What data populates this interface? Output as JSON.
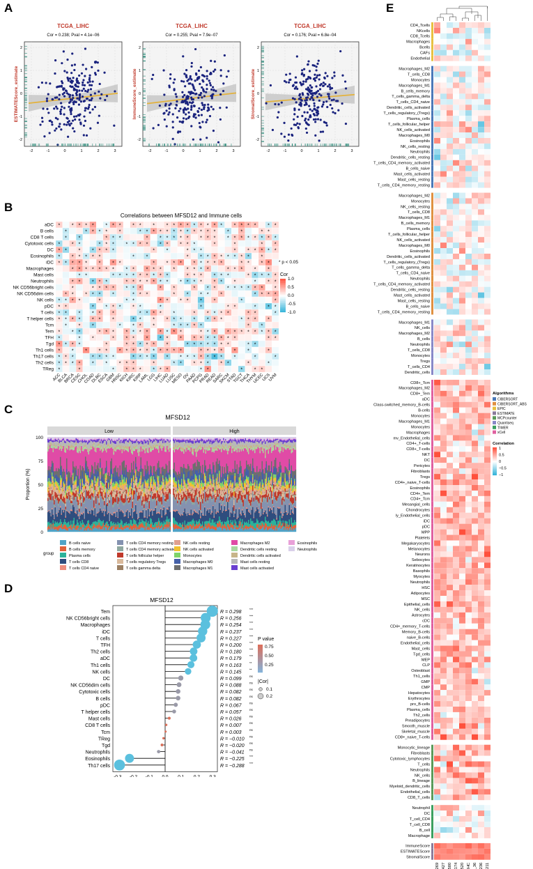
{
  "panels": {
    "A": "A",
    "B": "B",
    "C": "C",
    "D": "D",
    "E": "E"
  },
  "panelA": {
    "xlabel": "MFSD12 Expression (z−score)",
    "xticks": [
      "-2",
      "-1",
      "0",
      "1",
      "2",
      "3"
    ],
    "yticks": [
      "2",
      "1",
      "0",
      "-1",
      "-2"
    ],
    "plots": [
      {
        "title": "TCGA_LIHC",
        "stat": "Cor = 0.238; Pval = 4.1e−06",
        "ylabel": "ESTIMATEScore_estimate",
        "slope": 0.238
      },
      {
        "title": "TCGA_LIHC",
        "stat": "Cor = 0.255; Pval = 7.9e−07",
        "ylabel": "ImmuneScore_estimate",
        "slope": 0.255
      },
      {
        "title": "TCGA_LIHC",
        "stat": "Cor = 0.176; Pval = 6.8e−04",
        "ylabel": "StromalScore_estimate",
        "slope": 0.176
      }
    ],
    "colors": {
      "point": "#1a237e",
      "line": "#e3b23c",
      "band": "#bdbdbd",
      "rug": "#2e8b7a",
      "title": "#c0392b"
    }
  },
  "panelB": {
    "title": "Correlations between MFSD12 and Immune cells",
    "rows": [
      "aDC",
      "B cells",
      "CD8 T cells",
      "Cytotoxic cells",
      "DC",
      "Eosinophils",
      "iDC",
      "Macrophages",
      "Mast cells",
      "Neutrophils",
      "NK CD56bright cells",
      "NK CD56dim cells",
      "NK cells",
      "pDC",
      "T cells",
      "T helper cells",
      "Tcm",
      "Tem",
      "TFH",
      "Tgd",
      "Th1 cells",
      "Th17 cells",
      "Th2 cells",
      "TReg"
    ],
    "cols": [
      "ACC",
      "BLCA",
      "BRCA",
      "CESC",
      "CHOL",
      "COAD",
      "DLBC",
      "ESCA",
      "GBM",
      "HNSC",
      "KICH",
      "KIRC",
      "KIRP",
      "LAML",
      "LGG",
      "LIHC",
      "LUAD",
      "LUSC",
      "MESO",
      "OV",
      "PAAD",
      "PCPG",
      "PRAD",
      "READ",
      "SARC",
      "SKCM",
      "STAD",
      "TGCT",
      "THCA",
      "THYM",
      "UCEC",
      "UCS",
      "UVM"
    ],
    "note": "* p < 0.05",
    "legend_title": "Cor",
    "legend_ticks": [
      "1.0",
      "0.5",
      "0.0",
      "-0.5",
      "-1.0"
    ]
  },
  "panelC": {
    "title": "MFSD12",
    "facets": [
      "Low",
      "High"
    ],
    "ylabel": "Proportion (%)",
    "yticks": [
      "100",
      "75",
      "50",
      "25",
      "0"
    ],
    "legend_group_label": "group",
    "legend": [
      {
        "name": "B cells naive",
        "color": "#4fa3c7"
      },
      {
        "name": "B cells memory",
        "color": "#e0623b"
      },
      {
        "name": "Plasma cells",
        "color": "#2bb39b"
      },
      {
        "name": "T cells CD8",
        "color": "#2f4d7e"
      },
      {
        "name": "T cells CD4 naive",
        "color": "#ee8e7e"
      },
      {
        "name": "T cells CD4 memory resting",
        "color": "#8492b0"
      },
      {
        "name": "T cells CD4 memory activated",
        "color": "#8fa8a0"
      },
      {
        "name": "T cells follicular helper",
        "color": "#c0392b"
      },
      {
        "name": "T cells regulatory Tregs",
        "color": "#d9b99b"
      },
      {
        "name": "T cells gamma delta",
        "color": "#9b7f63"
      },
      {
        "name": "NK cells resting",
        "color": "#e0a090"
      },
      {
        "name": "NK cells activated",
        "color": "#f2c230"
      },
      {
        "name": "Monocytes",
        "color": "#7ed36a"
      },
      {
        "name": "Macrophages M0",
        "color": "#4560a8"
      },
      {
        "name": "Macrophages M1",
        "color": "#6e6e6e"
      },
      {
        "name": "Macrophages M2",
        "color": "#e04ba6"
      },
      {
        "name": "Dendritic cells resting",
        "color": "#a8d8a0"
      },
      {
        "name": "Dendritic cells activated",
        "color": "#c7b58a"
      },
      {
        "name": "Mast cells resting",
        "color": "#b8b8b8"
      },
      {
        "name": "Mast cells activated",
        "color": "#6a3fd0"
      },
      {
        "name": "Eosinophils",
        "color": "#e8a0d8"
      },
      {
        "name": "Neutrophils",
        "color": "#d9d0ea"
      }
    ]
  },
  "panelD": {
    "title": "MFSD12",
    "xlabel": "Correlation",
    "xticks": [
      "-0.3",
      "-0.2",
      "-0.1",
      "0.0",
      "0.1",
      "0.2",
      "0.3"
    ],
    "legend_p_title": "P value",
    "legend_p_ticks": [
      "0.75",
      "0.50",
      "0.25"
    ],
    "legend_cor_title": "|Cor|",
    "legend_cor_ticks": [
      "0.1",
      "0.2"
    ],
    "rows": [
      {
        "name": "Tem",
        "r": 0.298,
        "label": "R = 0.298",
        "sig": "***",
        "p": 0.0
      },
      {
        "name": "NK CD56bright cells",
        "r": 0.256,
        "label": "R = 0.256",
        "sig": "***",
        "p": 0.0
      },
      {
        "name": "Macrophages",
        "r": 0.254,
        "label": "R = 0.254",
        "sig": "***",
        "p": 0.0
      },
      {
        "name": "iDC",
        "r": 0.237,
        "label": "R = 0.237",
        "sig": "***",
        "p": 0.0
      },
      {
        "name": "T cells",
        "r": 0.227,
        "label": "R = 0.227",
        "sig": "***",
        "p": 0.0
      },
      {
        "name": "TFH",
        "r": 0.2,
        "label": "R = 0.200",
        "sig": "***",
        "p": 0.0
      },
      {
        "name": "Th2 cells",
        "r": 0.18,
        "label": "R = 0.180",
        "sig": "***",
        "p": 0.0
      },
      {
        "name": "aDC",
        "r": 0.179,
        "label": "R = 0.179",
        "sig": "***",
        "p": 0.0
      },
      {
        "name": "Th1 cells",
        "r": 0.163,
        "label": "R = 0.163",
        "sig": "**",
        "p": 0.0
      },
      {
        "name": "NK cells",
        "r": 0.145,
        "label": "R = 0.145",
        "sig": "**",
        "p": 0.0
      },
      {
        "name": "DC",
        "r": 0.099,
        "label": "R = 0.099",
        "sig": "ns",
        "p": 0.06
      },
      {
        "name": "NK CD56dim cells",
        "r": 0.088,
        "label": "R = 0.088",
        "sig": "ns",
        "p": 0.09
      },
      {
        "name": "Cytotoxic cells",
        "r": 0.082,
        "label": "R = 0.082",
        "sig": "ns",
        "p": 0.11
      },
      {
        "name": "B cells",
        "r": 0.082,
        "label": "R = 0.082",
        "sig": "ns",
        "p": 0.11
      },
      {
        "name": "pDC",
        "r": 0.067,
        "label": "R = 0.067",
        "sig": "ns",
        "p": 0.2
      },
      {
        "name": "T helper cells",
        "r": 0.057,
        "label": "R = 0.057",
        "sig": "ns",
        "p": 0.27
      },
      {
        "name": "Mast cells",
        "r": 0.026,
        "label": "R = 0.026",
        "sig": "ns",
        "p": 0.62
      },
      {
        "name": "CD8 T cells",
        "r": 0.007,
        "label": "R = 0.007",
        "sig": "ns",
        "p": 0.89
      },
      {
        "name": "Tcm",
        "r": 0.003,
        "label": "R = 0.003",
        "sig": "ns",
        "p": 0.95
      },
      {
        "name": "TReg",
        "r": -0.01,
        "label": "R = −0.010",
        "sig": "ns",
        "p": 0.85
      },
      {
        "name": "Tgd",
        "r": -0.02,
        "label": "R = −0.020",
        "sig": "ns",
        "p": 0.7
      },
      {
        "name": "Neutrophils",
        "r": -0.041,
        "label": "R = −0.041",
        "sig": "ns",
        "p": 0.43
      },
      {
        "name": "Eosinophils",
        "r": -0.225,
        "label": "R = −0.225",
        "sig": "***",
        "p": 0.0
      },
      {
        "name": "Th17 cells",
        "r": -0.288,
        "label": "R = −0.288",
        "sig": "***",
        "p": 0.0
      }
    ]
  },
  "panelE": {
    "blocks": [
      {
        "algo": "#e8c040",
        "rows": [
          "CD4_Tcells",
          "NKcells",
          "CD8_Tcells",
          "Macrophages",
          "Bcells",
          "CAFs",
          "Endothelial"
        ]
      },
      {
        "algo": "#4a78b8",
        "rows": [
          "Macrophages_M2",
          "T_cells_CD8",
          "Monocytes",
          "Macrophages_M1",
          "B_cells_memory",
          "T_cells_gamma_delta",
          "T_cells_CD4_naive",
          "Dendritic_cells_activated",
          "T_cells_regulatory_(Tregs)",
          "Plasma_cells",
          "T_cells_follicular_helper",
          "NK_cells_activated",
          "Macrophages_M0",
          "Eosinophils",
          "NK_cells_resting",
          "Neutrophils",
          "Dendritic_cells_resting",
          "T_cells_CD4_memory_activated",
          "B_cells_naive",
          "Mast_cells_activated",
          "Mast_cells_resting",
          "T_cells_CD4_memory_resting"
        ]
      },
      {
        "algo": "#e09040",
        "rows": [
          "Macrophages_M2",
          "Monocytes",
          "NK_cells_resting",
          "T_cells_CD8",
          "Macrophages_M1",
          "B_cells_memory",
          "Plasma_cells",
          "T_cells_follicular_helper",
          "NK_cells_activated",
          "Macrophages_M0",
          "Eosinophils",
          "Dendritic_cells_activated",
          "T_cells_regulatory_(Tregs)",
          "T_cells_gamma_delta",
          "T_cells_CD4_naive",
          "Neutrophils",
          "T_cells_CD4_memory_activated",
          "Dendritic_cells_resting",
          "Mast_cells_activated",
          "Mast_cells_resting",
          "B_cells_naive",
          "T_cells_CD4_memory_resting"
        ]
      },
      {
        "algo": "#8888c8",
        "rows": [
          "Macrophages_M1",
          "NK_cells",
          "Macrophages_M2",
          "B_cells",
          "Neutrophils",
          "T_cells_CD8",
          "Monocytes",
          "Tregs",
          "T_cells_CD4",
          "Dendritic_cells"
        ]
      },
      {
        "algo": "#e060a0",
        "rows": [
          "CD8+_Tcm",
          "Macrophages_M2",
          "CD8+_Tem",
          "aDC",
          "Class-switched_memory_B-cells",
          "B-cells",
          "Monocytes",
          "Macrophages_M1",
          "Monocytes",
          "Macrophages",
          "mv_Endothelial_cells",
          "CD4+_T-cells",
          "CD8+_T-cells",
          "NKT",
          "DC",
          "Pericytes",
          "Fibroblasts",
          "Tregs",
          "CD4+_naive_T-cells",
          "Eosinophils",
          "CD4+_Tem",
          "CD4+_Tcm",
          "Mesangial_cells",
          "Chondrocytes",
          "ly_Endothelial_cells",
          "iDC",
          "pDC",
          "MPP",
          "Platelets",
          "Megakaryocytes",
          "Melanocytes",
          "Neurons",
          "Sebocytes",
          "Keratinocytes",
          "Basophils",
          "Myocytes",
          "Neutrophils",
          "HSC",
          "Adipocytes",
          "MSC",
          "Epithelial_cells",
          "NK_cells",
          "Astrocytes",
          "cDC",
          "CD4+_memory_T-cells",
          "Memory_B-cells",
          "naive_B-cells",
          "Endothelial_cells",
          "Mast_cells",
          "Tgd_cells",
          "MEP",
          "CLP",
          "Osteoblast",
          "Th1_cells",
          "GMP",
          "CMP",
          "Hepatocytes",
          "Erythrocytes",
          "pro_B-cells",
          "Plasma_cells",
          "Th2_cells",
          "Preadipocytes",
          "Smooth_muscle",
          "Skeletal_muscle",
          "CD8+_naive_T-cells"
        ]
      },
      {
        "algo": "#5a9a58",
        "rows": [
          "Monocytic_lineage",
          "Fibroblasts",
          "Cytotoxic_lymphocytes",
          "T_cells",
          "Neutrophils",
          "NK_cells",
          "B_lineage",
          "Myeloid_dendritic_cells",
          "Endothelial_cells",
          "CD8_T_cells"
        ]
      },
      {
        "algo": "#3aa060",
        "rows": [
          "Neutrophil",
          "DC",
          "T_cell_CD4",
          "T_cell_CD8",
          "B_cell",
          "Macrophage"
        ]
      },
      {
        "algo": "#8a7a9a",
        "rows": [
          "ImmuneScore",
          "ESTIMATEScore",
          "StromalScore"
        ]
      }
    ],
    "datasets": [
      "GSE144269",
      "GSE76427",
      "GSE104580",
      "GSE116174",
      "GSE14520",
      "TCGA_LIHC",
      "E_TABM_36",
      "GSE54236",
      "GSE109211"
    ],
    "legend_algo_title": "Algorithms",
    "legend_algos": [
      {
        "name": "CIBERSORT",
        "color": "#4a78b8"
      },
      {
        "name": "CIBERSORT_ABS",
        "color": "#e09040"
      },
      {
        "name": "EPIC",
        "color": "#e8c040"
      },
      {
        "name": "ESTIMATE",
        "color": "#8a7a9a"
      },
      {
        "name": "MCPcounter",
        "color": "#5a9a58"
      },
      {
        "name": "Quantiseq",
        "color": "#8888c8"
      },
      {
        "name": "TIMER",
        "color": "#3aa060"
      },
      {
        "name": "xCell",
        "color": "#e060a0"
      }
    ],
    "legend_cor_title": "Correlation",
    "legend_cor_ticks": [
      "1",
      "0.5",
      "0",
      "−0.5",
      "−1"
    ]
  }
}
